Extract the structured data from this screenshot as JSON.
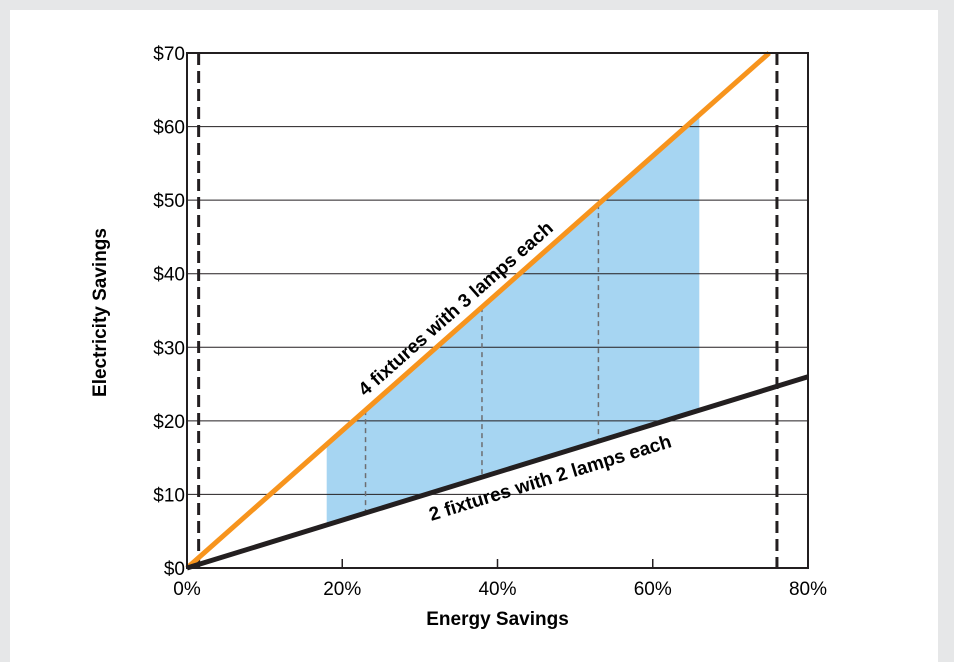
{
  "chart_data": {
    "type": "line",
    "title": "",
    "xlabel": "Energy Savings",
    "ylabel": "Electricity Savings",
    "xlim": [
      0,
      80
    ],
    "ylim": [
      0,
      70
    ],
    "x_ticks": [
      0,
      20,
      40,
      60,
      80
    ],
    "x_tick_labels": [
      "0%",
      "20%",
      "40%",
      "60%",
      "80%"
    ],
    "y_ticks": [
      0,
      10,
      20,
      30,
      40,
      50,
      60,
      70
    ],
    "y_tick_labels": [
      "$0",
      "$10",
      "$20",
      "$30",
      "$40",
      "$50",
      "$60",
      "$70"
    ],
    "grid": "horizontal",
    "series": [
      {
        "name": "4 fixtures with 3 lamps each",
        "color": "#f7941d",
        "x": [
          0,
          75
        ],
        "y": [
          0,
          70
        ]
      },
      {
        "name": "2 fixtures with 2 lamps each",
        "color": "#231f20",
        "x": [
          0,
          80
        ],
        "y": [
          0,
          26
        ]
      }
    ],
    "shaded_region": {
      "color": "#a6d5f2",
      "x_range": [
        18,
        66
      ],
      "between": [
        "2 fixtures with 2 lamps each",
        "4 fixtures with 3 lamps each"
      ]
    },
    "dashed_markers_x": [
      23,
      38,
      53
    ],
    "vertical_bounds_x": [
      1.5,
      76
    ]
  }
}
